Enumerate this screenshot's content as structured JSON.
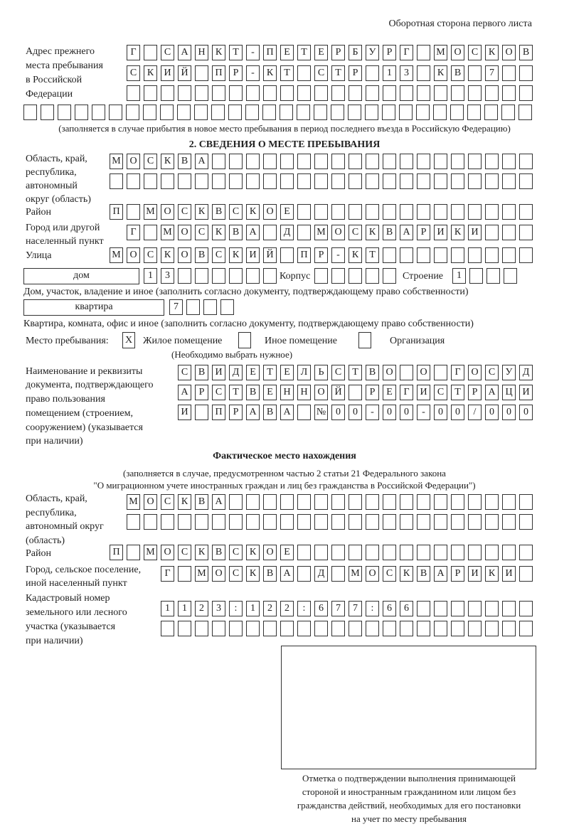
{
  "header": "Оборотная сторона первого листа",
  "prev_address": {
    "label": [
      "Адрес прежнего",
      "места пребывания",
      "в Российской",
      "Федерации"
    ],
    "rows": [
      [
        "Г",
        "",
        "С",
        "А",
        "Н",
        "К",
        "Т",
        "-",
        "П",
        "Е",
        "Т",
        "Е",
        "Р",
        "Б",
        "У",
        "Р",
        "Г",
        "",
        "М",
        "О",
        "С",
        "К",
        "О",
        "В"
      ],
      [
        "С",
        "К",
        "И",
        "Й",
        "",
        "П",
        "Р",
        "-",
        "К",
        "Т",
        "",
        "С",
        "Т",
        "Р",
        "",
        "1",
        "3",
        "",
        "К",
        "В",
        "",
        "7",
        "",
        ""
      ],
      [
        "",
        "",
        "",
        "",
        "",
        "",
        "",
        "",
        "",
        "",
        "",
        "",
        "",
        "",
        "",
        "",
        "",
        "",
        "",
        "",
        "",
        "",
        "",
        ""
      ],
      [
        "",
        "",
        "",
        "",
        "",
        "",
        "",
        "",
        "",
        "",
        "",
        "",
        "",
        "",
        "",
        "",
        "",
        "",
        "",
        "",
        "",
        "",
        "",
        "",
        "",
        "",
        "",
        "",
        "",
        ""
      ]
    ],
    "note": "(заполняется в случае прибытия в новое место пребывания в период последнего въезда в Российскую Федерацию)"
  },
  "section2": {
    "title": "2. СВЕДЕНИЯ О МЕСТЕ ПРЕБЫВАНИЯ",
    "region_label": [
      "Область, край,",
      "республика,",
      "автономный",
      "округ (область)"
    ],
    "region_rows": [
      [
        "М",
        "О",
        "С",
        "К",
        "В",
        "А",
        "",
        "",
        "",
        "",
        "",
        "",
        "",
        "",
        "",
        "",
        "",
        "",
        "",
        "",
        "",
        "",
        "",
        "",
        ""
      ],
      [
        "",
        "",
        "",
        "",
        "",
        "",
        "",
        "",
        "",
        "",
        "",
        "",
        "",
        "",
        "",
        "",
        "",
        "",
        "",
        "",
        "",
        "",
        "",
        "",
        ""
      ]
    ],
    "district_label": "Район",
    "district": [
      "П",
      "",
      "М",
      "О",
      "С",
      "К",
      "В",
      "С",
      "К",
      "О",
      "Е",
      "",
      "",
      "",
      "",
      "",
      "",
      "",
      "",
      "",
      "",
      "",
      "",
      "",
      ""
    ],
    "city_label": [
      "Город или другой",
      "населенный пункт"
    ],
    "city": [
      "Г",
      "",
      "М",
      "О",
      "С",
      "К",
      "В",
      "А",
      "",
      "Д",
      "",
      "М",
      "О",
      "С",
      "К",
      "В",
      "А",
      "Р",
      "И",
      "К",
      "И",
      "",
      "",
      ""
    ],
    "street_label": "Улица",
    "street": [
      "М",
      "О",
      "С",
      "К",
      "О",
      "В",
      "С",
      "К",
      "И",
      "Й",
      "",
      "П",
      "Р",
      "-",
      "К",
      "Т",
      "",
      "",
      "",
      "",
      "",
      "",
      "",
      "",
      ""
    ],
    "house_type": "дом",
    "house": [
      "1",
      "3",
      "",
      "",
      "",
      "",
      "",
      ""
    ],
    "korpus_label": "Корпус",
    "korpus": [
      "",
      "",
      "",
      "",
      ""
    ],
    "stroenie_label": "Строение",
    "stroenie": [
      "1",
      "",
      "",
      ""
    ],
    "house_note": "Дом, участок, владение и иное (заполнить согласно документу, подтверждающему право собственности)",
    "flat_type": "квартира",
    "flat": [
      "7",
      "",
      "",
      ""
    ],
    "flat_note": "Квартира, комната, офис и иное (заполнить согласно документу, подтверждающему право собственности)",
    "stay_label": "Место пребывания:",
    "stay_options": [
      {
        "label": "Жилое помещение",
        "mark": "X"
      },
      {
        "label": "Иное помещение",
        "mark": ""
      },
      {
        "label": "Организация",
        "mark": ""
      }
    ],
    "stay_note": "(Необходимо выбрать нужное)",
    "doc_label": [
      "Наименование и реквизиты",
      "документа, подтверждающего",
      "право пользования",
      "помещением (строением,",
      "сооружением) (указывается",
      "при наличии)"
    ],
    "doc_rows": [
      [
        "С",
        "В",
        "И",
        "Д",
        "Е",
        "Т",
        "Е",
        "Л",
        "Ь",
        "С",
        "Т",
        "В",
        "О",
        "",
        "О",
        "",
        "Г",
        "О",
        "С",
        "У",
        "Д"
      ],
      [
        "А",
        "Р",
        "С",
        "Т",
        "В",
        "Е",
        "Н",
        "Н",
        "О",
        "Й",
        "",
        "Р",
        "Е",
        "Г",
        "И",
        "С",
        "Т",
        "Р",
        "А",
        "Ц",
        "И"
      ],
      [
        "И",
        "",
        "П",
        "Р",
        "А",
        "В",
        "А",
        "",
        "№",
        "0",
        "0",
        "-",
        "0",
        "0",
        "-",
        "0",
        "0",
        "/",
        "0",
        "0",
        "0"
      ]
    ]
  },
  "actual": {
    "title": "Фактическое место нахождения",
    "note": [
      "(заполняется в случае, предусмотренном частью 2 статьи 21 Федерального закона",
      "\"О миграционном учете иностранных граждан и лиц без гражданства в Российской Федерации\")"
    ],
    "region_label": [
      "Область, край,",
      "республика,",
      "автономный округ",
      "(область)"
    ],
    "region_rows": [
      [
        "М",
        "О",
        "С",
        "К",
        "В",
        "А",
        "",
        "",
        "",
        "",
        "",
        "",
        "",
        "",
        "",
        "",
        "",
        "",
        "",
        "",
        "",
        "",
        "",
        ""
      ],
      [
        "",
        "",
        "",
        "",
        "",
        "",
        "",
        "",
        "",
        "",
        "",
        "",
        "",
        "",
        "",
        "",
        "",
        "",
        "",
        "",
        "",
        "",
        "",
        ""
      ]
    ],
    "district_label": "Район",
    "district": [
      "П",
      "",
      "М",
      "О",
      "С",
      "К",
      "В",
      "С",
      "К",
      "О",
      "Е",
      "",
      "",
      "",
      "",
      "",
      "",
      "",
      "",
      "",
      "",
      "",
      "",
      "",
      ""
    ],
    "city_label": [
      "Город, сельское поселение,",
      "иной населенный пункт"
    ],
    "city": [
      "Г",
      "",
      "М",
      "О",
      "С",
      "К",
      "В",
      "А",
      "",
      "Д",
      "",
      "М",
      "О",
      "С",
      "К",
      "В",
      "А",
      "Р",
      "И",
      "К",
      "И",
      ""
    ],
    "cadastre_label": [
      "Кадастровый номер",
      "земельного или лесного",
      "участка (указывается",
      "при наличии)"
    ],
    "cadastre_rows": [
      [
        "1",
        "1",
        "2",
        "3",
        ":",
        "1",
        "2",
        "2",
        ":",
        "6",
        "7",
        "7",
        ":",
        "6",
        "6",
        "",
        "",
        "",
        "",
        "",
        "",
        ""
      ],
      [
        "",
        "",
        "",
        "",
        "",
        "",
        "",
        "",
        "",
        "",
        "",
        "",
        "",
        "",
        "",
        "",
        "",
        "",
        "",
        "",
        "",
        ""
      ]
    ]
  },
  "stamp_caption": [
    "Отметка о подтверждении выполнения принимающей",
    "стороной и иностранным гражданином или лицом без",
    "гражданства действий, необходимых для его постановки",
    "на учет по месту пребывания"
  ]
}
